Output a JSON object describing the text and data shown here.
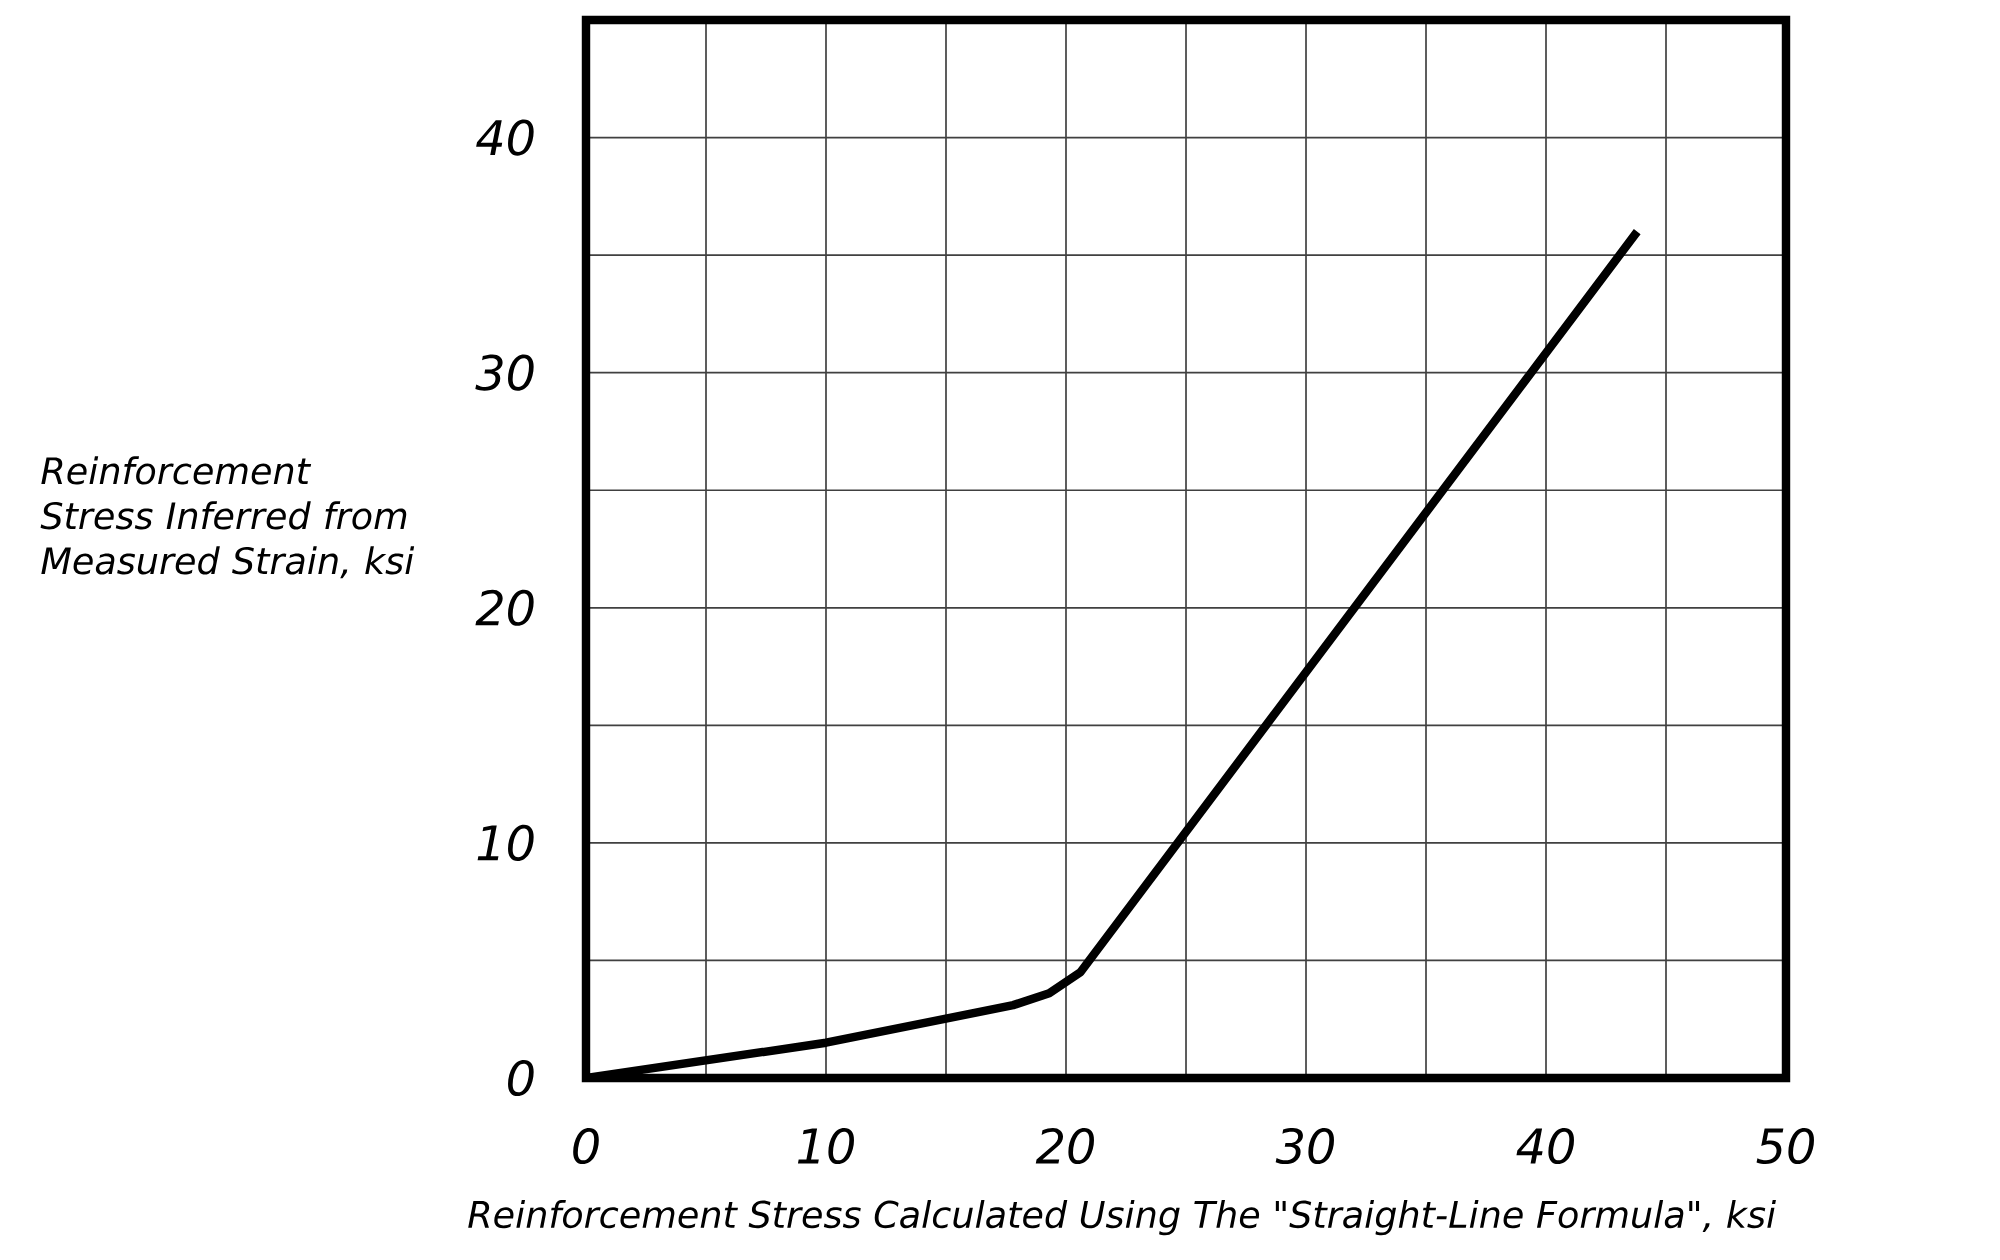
{
  "chart_data": {
    "type": "line",
    "xlabel": "Reinforcement Stress Calculated Using The \"Straight-Line Formula\", ksi",
    "ylabel": "Reinforcement Stress Inferred from Measured Strain, ksi",
    "x": [
      0,
      10,
      17.8,
      19.3,
      20.6,
      43.8
    ],
    "series": [
      {
        "color": "#000000",
        "values": [
          0,
          1.5,
          3.1,
          3.6,
          4.5,
          36
        ]
      }
    ],
    "xlim": [
      0,
      50
    ],
    "ylim": [
      0,
      45
    ],
    "xticks": [
      0,
      {
        "value": 5,
        "label": null
      },
      10,
      {
        "value": 15,
        "label": null
      },
      20,
      {
        "value": 25,
        "label": null
      },
      30,
      {
        "value": 35,
        "label": null
      },
      40,
      {
        "value": 45,
        "label": null
      },
      50
    ],
    "yticks": [
      0,
      {
        "value": 5,
        "label": null
      },
      10,
      {
        "value": 15,
        "label": null
      },
      20,
      {
        "value": 25,
        "label": null
      },
      30,
      {
        "value": 35,
        "label": null
      },
      40,
      {
        "value": 45,
        "label": null
      }
    ],
    "grid": true,
    "marker": "none",
    "line_style": "solid"
  }
}
